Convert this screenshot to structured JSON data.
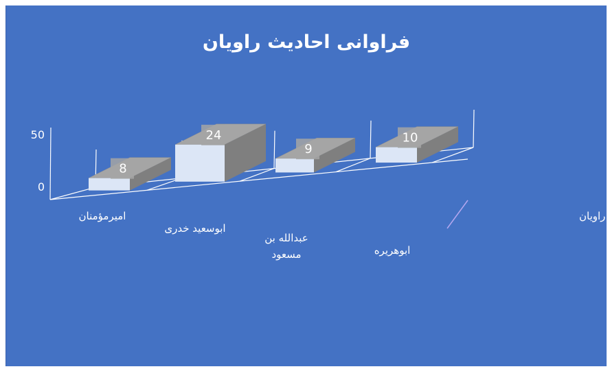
{
  "colors": {
    "background": "#4472C4",
    "bar_front": "#DCE6F6",
    "bar_top": "#A5A5A5",
    "bar_side": "#7F7F7F",
    "gridline": "#FFFFFF",
    "text": "#FFFFFF"
  },
  "chart_data": {
    "type": "bar",
    "title": "فراوانی احادیث راویان",
    "categories": [
      "امیرمؤمنان",
      "ابوسعید خدری",
      "عبدالله بن مسعود",
      "ابوهریره"
    ],
    "series": [
      {
        "name": "فراوانی احادیث راویان",
        "values": [
          8,
          24,
          9,
          10
        ]
      }
    ],
    "data_labels": [
      "8",
      "24",
      "9",
      "10"
    ],
    "y_ticks": [
      "0",
      "50"
    ],
    "ylim": [
      0,
      50
    ],
    "grid": true,
    "legend_position": "right",
    "style": "3d-column"
  }
}
